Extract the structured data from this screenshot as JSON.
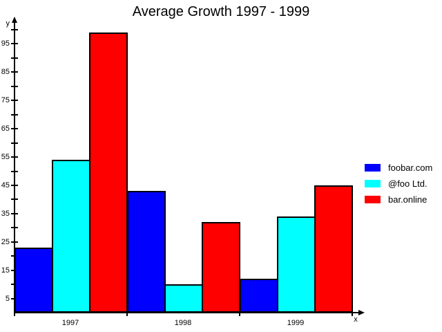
{
  "title": "Average Growth 1997 - 1999",
  "chart_data": {
    "type": "bar",
    "title": "Average Growth 1997 - 1999",
    "categories": [
      "1997",
      "1998",
      "1999"
    ],
    "series": [
      {
        "name": "foobar.com",
        "color": "#0000ff",
        "values": [
          23,
          43,
          12
        ]
      },
      {
        "name": "@foo Ltd.",
        "color": "#00ffff",
        "values": [
          54,
          10,
          34
        ]
      },
      {
        "name": "bar.online",
        "color": "#ff0000",
        "values": [
          99,
          32,
          45
        ]
      }
    ],
    "xlabel": "x",
    "ylabel": "y",
    "ylim": [
      0,
      100
    ],
    "ytick_step": 5,
    "ytick_labeled": [
      5,
      15,
      25,
      35,
      45,
      55,
      65,
      75,
      85,
      95
    ],
    "grid": false,
    "legend_position": "right",
    "bar_border_color": "#000000",
    "background_color": "#ffffff"
  }
}
